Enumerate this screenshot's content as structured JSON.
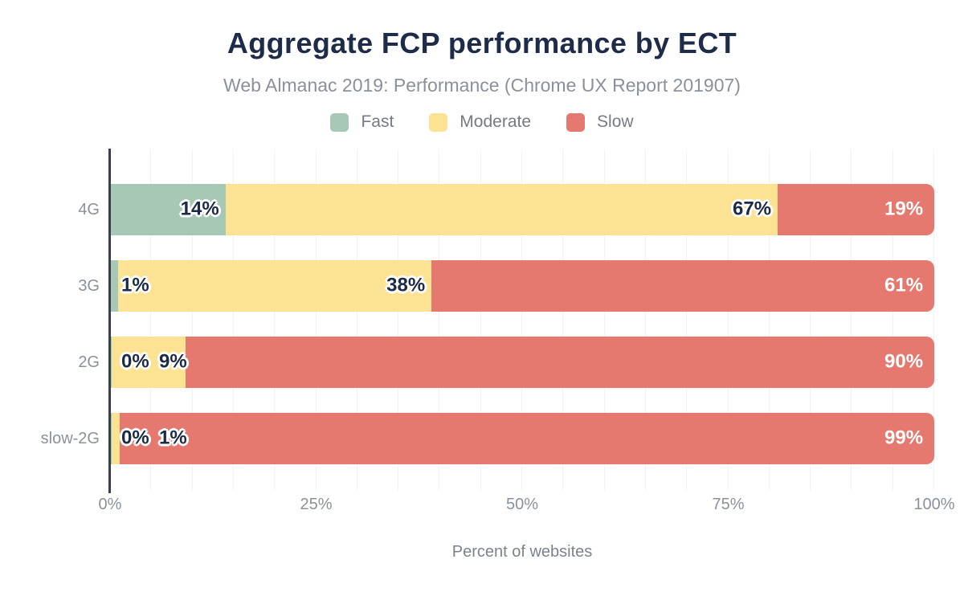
{
  "header": {
    "title": "Aggregate FCP performance by ECT",
    "subtitle": "Web Almanac 2019: Performance (Chrome UX Report 201907)"
  },
  "chart_data": {
    "type": "bar",
    "orientation": "horizontal",
    "stacked": true,
    "title": "Aggregate FCP performance by ECT",
    "subtitle": "Web Almanac 2019: Performance (Chrome UX Report 201907)",
    "xlabel": "Percent of websites",
    "ylabel": "",
    "xlim": [
      0,
      100
    ],
    "grid": true,
    "grid_step_pct": 5,
    "legend_position": "top",
    "x_ticks": [
      {
        "label": "0%",
        "pct": 0
      },
      {
        "label": "25%",
        "pct": 25
      },
      {
        "label": "50%",
        "pct": 50
      },
      {
        "label": "75%",
        "pct": 75
      },
      {
        "label": "100%",
        "pct": 100
      }
    ],
    "categories": [
      "4G",
      "3G",
      "2G",
      "slow-2G"
    ],
    "series": [
      {
        "name": "Fast",
        "color": "#a7c8b4",
        "values": [
          14,
          1,
          0,
          0
        ],
        "labels": [
          "14%",
          "1%",
          "0%",
          "0%"
        ],
        "label_style": "navy-outlined"
      },
      {
        "name": "Moderate",
        "color": "#fce293",
        "values": [
          67,
          38,
          9,
          1
        ],
        "labels": [
          "67%",
          "38%",
          "9%",
          "1%"
        ],
        "label_style": "navy-outlined"
      },
      {
        "name": "Slow",
        "color": "#e5796f",
        "values": [
          19,
          61,
          90,
          99
        ],
        "labels": [
          "19%",
          "61%",
          "90%",
          "99%"
        ],
        "label_style": "white"
      }
    ]
  },
  "colors": {
    "title": "#1e2c4a",
    "subtitle_gray": "#8b919c",
    "axis_text": "#8b919c",
    "legend_text": "#757a84",
    "bar_label_navy": "#1c2a44",
    "bar_label_white": "#ffffff",
    "axis_line": "#38404f",
    "gridline": "#f3f3f6",
    "fast": "#a7c8b4",
    "moderate": "#fce293",
    "slow": "#e5796f"
  }
}
